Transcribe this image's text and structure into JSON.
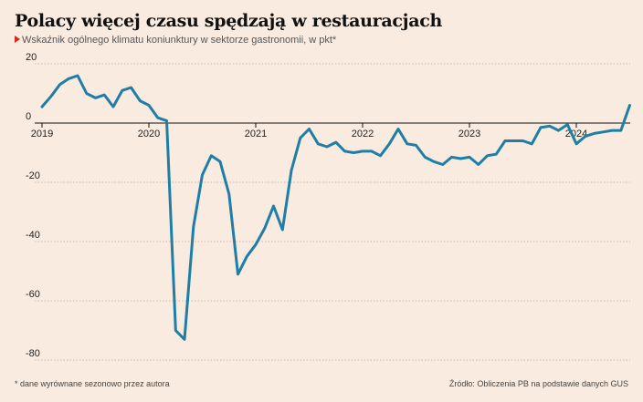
{
  "header": {
    "title": "Polacy więcej czasu spędzają w restauracjach",
    "subtitle": "Wskaźnik ogólnego klimatu koniunktury w sektorze gastronomii, w pkt*"
  },
  "footer": {
    "note": "* dane wyrównane sezonowo przez autora",
    "source": "Źródło: Obliczenia PB na podstawie danych GUS"
  },
  "colors": {
    "line": "#1f7ea6",
    "background": "#f9ebe0",
    "marker": "#d9261c"
  },
  "chart_data": {
    "type": "line",
    "title": "Polacy więcej czasu spędzają w restauracjach",
    "subtitle": "Wskaźnik ogólnego klimatu koniunktury w sektorze gastronomii, w pkt*",
    "xlabel": "",
    "ylabel": "",
    "ylim": [
      -80,
      20
    ],
    "yticks": [
      20,
      0,
      -20,
      -40,
      -60,
      -80
    ],
    "xticks": [
      "2019",
      "2020",
      "2021",
      "2022",
      "2023",
      "2024"
    ],
    "grid": true,
    "legend": "none",
    "x": [
      "2019-01",
      "2019-02",
      "2019-03",
      "2019-04",
      "2019-05",
      "2019-06",
      "2019-07",
      "2019-08",
      "2019-09",
      "2019-10",
      "2019-11",
      "2019-12",
      "2020-01",
      "2020-02",
      "2020-03",
      "2020-04",
      "2020-05",
      "2020-06",
      "2020-07",
      "2020-08",
      "2020-09",
      "2020-10",
      "2020-11",
      "2020-12",
      "2021-01",
      "2021-02",
      "2021-03",
      "2021-04",
      "2021-05",
      "2021-06",
      "2021-07",
      "2021-08",
      "2021-09",
      "2021-10",
      "2021-11",
      "2021-12",
      "2022-01",
      "2022-02",
      "2022-03",
      "2022-04",
      "2022-05",
      "2022-06",
      "2022-07",
      "2022-08",
      "2022-09",
      "2022-10",
      "2022-11",
      "2022-12",
      "2023-01",
      "2023-02",
      "2023-03",
      "2023-04",
      "2023-05",
      "2023-06",
      "2023-07",
      "2023-08",
      "2023-09",
      "2023-10",
      "2023-11",
      "2023-12",
      "2024-01",
      "2024-02",
      "2024-03",
      "2024-04",
      "2024-05",
      "2024-06",
      "2024-07"
    ],
    "series": [
      {
        "values": [
          5.5,
          9,
          13,
          15,
          16,
          10,
          8.5,
          9.5,
          5.5,
          11,
          12,
          7.5,
          6,
          1.8,
          0.8,
          -70,
          -73,
          -35,
          -17.5,
          -11,
          -13,
          -24,
          -51,
          -45,
          -41,
          -35.5,
          -28,
          -36,
          -16,
          -5,
          -2,
          -7,
          -8,
          -6.5,
          -9.5,
          -10,
          -9.5,
          -9.5,
          -11,
          -7,
          -2,
          -7,
          -7.5,
          -11.5,
          -13,
          -14,
          -11.5,
          -12,
          -11.5,
          -14,
          -11,
          -10.5,
          -6,
          -6,
          -6,
          -7,
          -1.5,
          -1,
          -2.5,
          -0.5,
          -7,
          -4.5,
          -3.5,
          -3,
          -2.5,
          -2.5,
          6
        ]
      }
    ]
  }
}
